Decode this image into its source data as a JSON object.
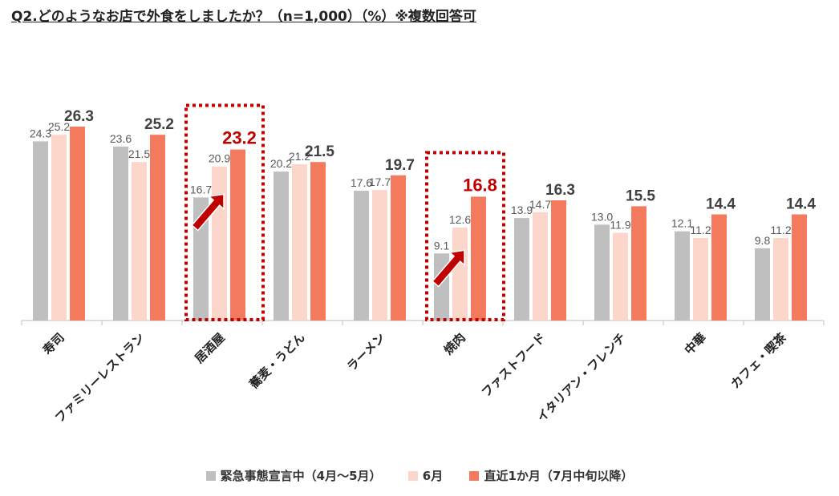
{
  "title": "Q2.どのようなお店で外食をしましたか？（n=1,000）（%）※複数回答可",
  "chart_data": {
    "type": "bar",
    "categories": [
      "寿司",
      "ファミリーレストラン",
      "居酒屋",
      "蕎麦・うどん",
      "ラーメン",
      "焼肉",
      "ファストフード",
      "イタリアン・フレンチ",
      "中華",
      "カフェ・喫茶"
    ],
    "series": [
      {
        "name": "緊急事態宣言中（4月～5月）",
        "color": "#bfbfbf",
        "values": [
          24.3,
          23.6,
          16.7,
          20.2,
          17.6,
          9.1,
          13.9,
          13.0,
          12.1,
          9.8
        ]
      },
      {
        "name": "6月",
        "color": "#fcd5cb",
        "values": [
          25.2,
          21.5,
          20.9,
          21.2,
          17.7,
          12.6,
          14.7,
          11.9,
          11.2,
          11.2
        ]
      },
      {
        "name": "直近1か月（7月中旬以降）",
        "color": "#f47a5e",
        "values": [
          26.3,
          25.2,
          23.2,
          21.5,
          19.7,
          16.8,
          16.3,
          15.5,
          14.4,
          14.4
        ]
      }
    ],
    "highlighted_categories": [
      "居酒屋",
      "焼肉"
    ],
    "highlight_color": "#c00000",
    "ylim": [
      0,
      30
    ],
    "grid": false,
    "legend_position": "bottom"
  }
}
